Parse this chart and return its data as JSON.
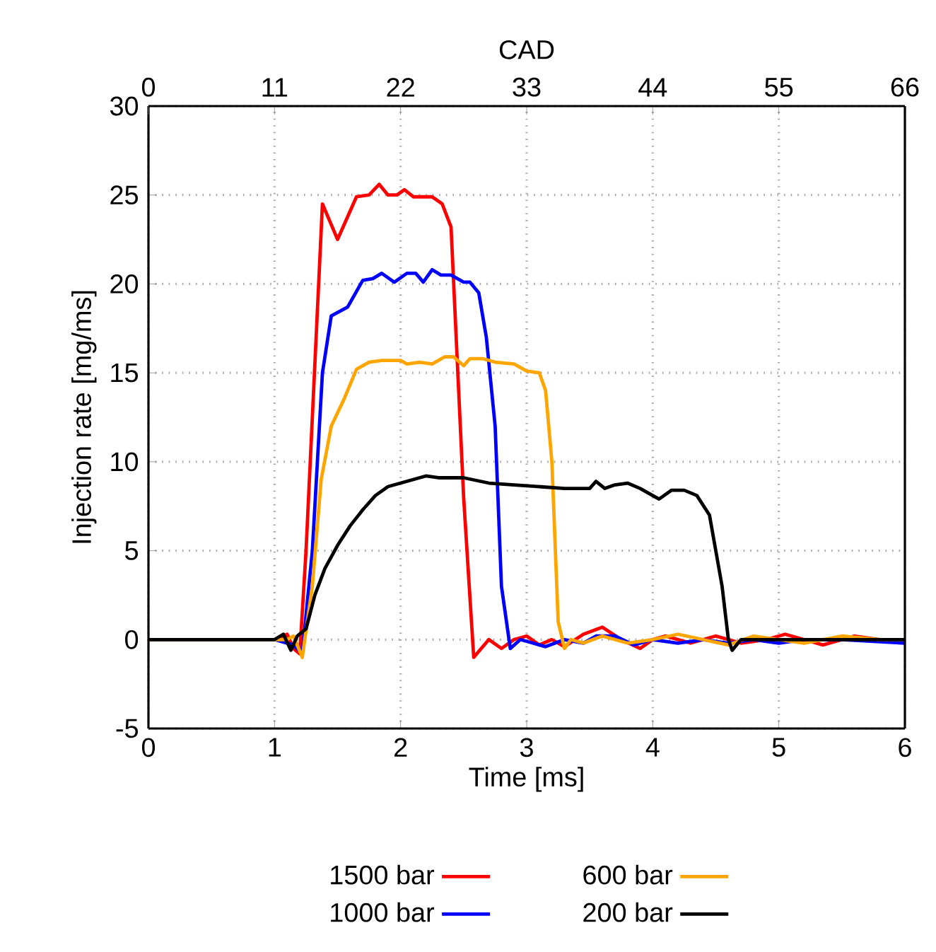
{
  "chart_data": {
    "type": "line",
    "xlabel": "Time [ms]",
    "ylabel": "Injection rate [mg/ms]",
    "x2label": "CAD",
    "xlim": [
      0,
      6
    ],
    "xticks": [
      0,
      1,
      2,
      3,
      4,
      5,
      6
    ],
    "ylim": [
      -5,
      30
    ],
    "yticks": [
      -5,
      0,
      5,
      10,
      15,
      20,
      25,
      30
    ],
    "x2lim": [
      0,
      66
    ],
    "x2ticks": [
      0,
      11,
      22,
      33,
      44,
      55,
      66
    ],
    "grid": true,
    "legend": "bottom",
    "marker": "none",
    "line_style": "solid",
    "series": [
      {
        "name": "1500 bar",
        "color": "#ff0000",
        "x": [
          0,
          1.0,
          1.1,
          1.15,
          1.2,
          1.25,
          1.38,
          1.5,
          1.65,
          1.75,
          1.83,
          1.9,
          1.97,
          2.03,
          2.1,
          2.25,
          2.33,
          2.4,
          2.5,
          2.58,
          2.7,
          2.8,
          2.9,
          3.0,
          3.1,
          3.2,
          3.3,
          3.45,
          3.6,
          3.75,
          3.9,
          4.0,
          4.1,
          4.3,
          4.5,
          4.7,
          4.9,
          5.05,
          5.2,
          5.35,
          5.6,
          5.8,
          6
        ],
        "values": [
          0,
          0,
          0.3,
          -0.5,
          -0.8,
          5,
          24.5,
          22.5,
          24.9,
          25,
          25.6,
          25,
          25,
          25.3,
          24.9,
          24.9,
          24.5,
          23.2,
          8,
          -1,
          0,
          -0.5,
          0,
          0.2,
          -0.3,
          0,
          -0.4,
          0.3,
          0.7,
          0,
          -0.5,
          0,
          0.2,
          -0.2,
          0.2,
          -0.2,
          0,
          0.3,
          0,
          -0.3,
          0.2,
          0,
          0
        ]
      },
      {
        "name": "1000 bar",
        "color": "#0000ff",
        "x": [
          0,
          1.0,
          1.15,
          1.22,
          1.3,
          1.38,
          1.45,
          1.58,
          1.7,
          1.78,
          1.85,
          1.95,
          2.05,
          2.12,
          2.18,
          2.25,
          2.32,
          2.4,
          2.5,
          2.55,
          2.62,
          2.68,
          2.75,
          2.8,
          2.87,
          2.95,
          3.05,
          3.15,
          3.3,
          3.45,
          3.55,
          3.7,
          3.85,
          4.0,
          4.2,
          4.4,
          4.6,
          4.8,
          5.0,
          5.2,
          5.5,
          6
        ],
        "values": [
          0,
          0,
          -0.3,
          -0.8,
          5,
          15,
          18.2,
          18.7,
          20.2,
          20.3,
          20.6,
          20.1,
          20.6,
          20.6,
          20.1,
          20.8,
          20.5,
          20.5,
          20.1,
          20.1,
          19.5,
          17,
          12,
          3,
          -0.5,
          0,
          -0.2,
          -0.4,
          0,
          -0.2,
          0.2,
          0.2,
          -0.3,
          0,
          -0.2,
          0,
          -0.2,
          0,
          -0.2,
          0,
          0,
          -0.2
        ]
      },
      {
        "name": "600 bar",
        "color": "#ffa500",
        "x": [
          0,
          1.1,
          1.15,
          1.22,
          1.3,
          1.37,
          1.45,
          1.55,
          1.65,
          1.75,
          1.85,
          2.0,
          2.05,
          2.15,
          2.25,
          2.35,
          2.42,
          2.5,
          2.55,
          2.65,
          2.75,
          2.9,
          3.0,
          3.1,
          3.15,
          3.2,
          3.25,
          3.3,
          3.35,
          3.45,
          3.6,
          3.8,
          4.0,
          4.2,
          4.4,
          4.6,
          4.8,
          5.0,
          5.2,
          5.5,
          5.8,
          6
        ],
        "values": [
          0,
          0,
          0.2,
          -1,
          3,
          9,
          12,
          13.5,
          15.2,
          15.6,
          15.7,
          15.7,
          15.5,
          15.6,
          15.5,
          15.9,
          15.9,
          15.4,
          15.8,
          15.8,
          15.6,
          15.5,
          15.1,
          15,
          14,
          10,
          1,
          -0.5,
          0,
          -0.2,
          0.2,
          -0.2,
          0,
          0.3,
          0,
          -0.3,
          0.2,
          0,
          -0.2,
          0.2,
          0,
          0
        ]
      },
      {
        "name": "200 bar",
        "color": "#000000",
        "x": [
          0,
          1.0,
          1.07,
          1.13,
          1.18,
          1.25,
          1.32,
          1.4,
          1.5,
          1.6,
          1.7,
          1.8,
          1.9,
          2.0,
          2.1,
          2.2,
          2.3,
          2.5,
          2.7,
          2.9,
          3.1,
          3.3,
          3.5,
          3.55,
          3.62,
          3.7,
          3.8,
          3.9,
          4.0,
          4.05,
          4.15,
          4.25,
          4.35,
          4.45,
          4.55,
          4.6,
          4.63,
          4.7,
          4.9,
          5.2,
          5.5,
          6
        ],
        "values": [
          0,
          0,
          0.3,
          -0.6,
          0.2,
          0.6,
          2.5,
          4,
          5.3,
          6.4,
          7.3,
          8.1,
          8.6,
          8.8,
          9.0,
          9.2,
          9.1,
          9.1,
          8.8,
          8.7,
          8.6,
          8.5,
          8.5,
          8.9,
          8.5,
          8.7,
          8.8,
          8.5,
          8.1,
          7.9,
          8.4,
          8.4,
          8.1,
          7,
          3,
          0,
          -0.6,
          0,
          0,
          0,
          0,
          0
        ]
      }
    ]
  }
}
